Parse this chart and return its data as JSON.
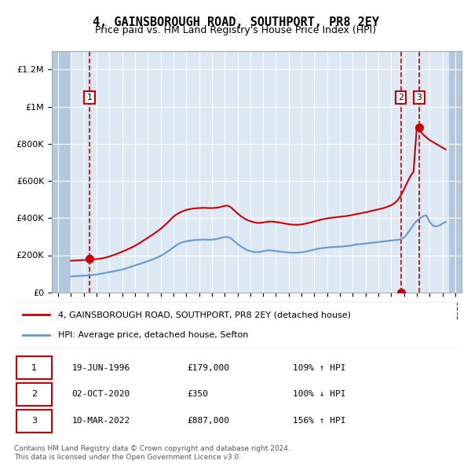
{
  "title": "4, GAINSBOROUGH ROAD, SOUTHPORT, PR8 2EY",
  "subtitle": "Price paid vs. HM Land Registry's House Price Index (HPI)",
  "ylabel": "",
  "background_color": "#dce9f5",
  "hatch_color": "#b0c8e0",
  "grid_color": "#ffffff",
  "xmin": 1993.5,
  "xmax": 2025.5,
  "ymin": 0,
  "ymax": 1300000,
  "yticks": [
    0,
    200000,
    400000,
    600000,
    800000,
    1000000,
    1200000
  ],
  "ytick_labels": [
    "£0",
    "£200K",
    "£400K",
    "£600K",
    "£800K",
    "£1M",
    "£1.2M"
  ],
  "xticks": [
    1994,
    1995,
    1996,
    1997,
    1998,
    1999,
    2000,
    2001,
    2002,
    2003,
    2004,
    2005,
    2006,
    2007,
    2008,
    2009,
    2010,
    2011,
    2012,
    2013,
    2014,
    2015,
    2016,
    2017,
    2018,
    2019,
    2020,
    2021,
    2022,
    2023,
    2024,
    2025
  ],
  "hpi_x": [
    1995,
    1995.25,
    1995.5,
    1995.75,
    1996,
    1996.25,
    1996.5,
    1996.75,
    1997,
    1997.25,
    1997.5,
    1997.75,
    1998,
    1998.25,
    1998.5,
    1998.75,
    1999,
    1999.25,
    1999.5,
    1999.75,
    2000,
    2000.25,
    2000.5,
    2000.75,
    2001,
    2001.25,
    2001.5,
    2001.75,
    2002,
    2002.25,
    2002.5,
    2002.75,
    2003,
    2003.25,
    2003.5,
    2003.75,
    2004,
    2004.25,
    2004.5,
    2004.75,
    2005,
    2005.25,
    2005.5,
    2005.75,
    2006,
    2006.25,
    2006.5,
    2006.75,
    2007,
    2007.25,
    2007.5,
    2007.75,
    2008,
    2008.25,
    2008.5,
    2008.75,
    2009,
    2009.25,
    2009.5,
    2009.75,
    2010,
    2010.25,
    2010.5,
    2010.75,
    2011,
    2011.25,
    2011.5,
    2011.75,
    2012,
    2012.25,
    2012.5,
    2012.75,
    2013,
    2013.25,
    2013.5,
    2013.75,
    2014,
    2014.25,
    2014.5,
    2014.75,
    2015,
    2015.25,
    2015.5,
    2015.75,
    2016,
    2016.25,
    2016.5,
    2016.75,
    2017,
    2017.25,
    2017.5,
    2017.75,
    2018,
    2018.25,
    2018.5,
    2018.75,
    2019,
    2019.25,
    2019.5,
    2019.75,
    2020,
    2020.25,
    2020.5,
    2020.75,
    2021,
    2021.25,
    2021.5,
    2021.75,
    2022,
    2022.25,
    2022.5,
    2022.75,
    2023,
    2023.25,
    2023.5,
    2023.75,
    2024,
    2024.25
  ],
  "hpi_y": [
    85000,
    87000,
    88000,
    89000,
    90000,
    91000,
    92000,
    94000,
    96000,
    99000,
    102000,
    106000,
    109000,
    112000,
    116000,
    119000,
    123000,
    128000,
    133000,
    139000,
    145000,
    150000,
    156000,
    162000,
    168000,
    174000,
    181000,
    188000,
    196000,
    206000,
    218000,
    230000,
    242000,
    255000,
    265000,
    271000,
    275000,
    278000,
    280000,
    282000,
    283000,
    284000,
    284000,
    283000,
    284000,
    286000,
    289000,
    294000,
    298000,
    298000,
    290000,
    275000,
    260000,
    248000,
    237000,
    228000,
    222000,
    218000,
    216000,
    218000,
    222000,
    225000,
    226000,
    225000,
    222000,
    220000,
    218000,
    216000,
    214000,
    213000,
    213000,
    214000,
    216000,
    218000,
    222000,
    226000,
    230000,
    234000,
    237000,
    239000,
    241000,
    243000,
    244000,
    245000,
    246000,
    247000,
    249000,
    251000,
    254000,
    257000,
    259000,
    261000,
    263000,
    265000,
    267000,
    269000,
    271000,
    273000,
    275000,
    277000,
    279000,
    281000,
    283000,
    286000,
    295000,
    315000,
    340000,
    365000,
    385000,
    400000,
    410000,
    415000,
    380000,
    360000,
    355000,
    360000,
    370000,
    380000
  ],
  "price_x": [
    1995.0,
    1995.25,
    1995.5,
    1995.75,
    1996.0,
    1996.25,
    1996.5,
    1996.75,
    1997.0,
    1997.25,
    1997.5,
    1997.75,
    1998.0,
    1998.25,
    1998.5,
    1998.75,
    1999.0,
    1999.25,
    1999.5,
    1999.75,
    2000.0,
    2000.25,
    2000.5,
    2000.75,
    2001.0,
    2001.25,
    2001.5,
    2001.75,
    2002.0,
    2002.25,
    2002.5,
    2002.75,
    2003.0,
    2003.25,
    2003.5,
    2003.75,
    2004.0,
    2004.25,
    2004.5,
    2004.75,
    2005.0,
    2005.25,
    2005.5,
    2005.75,
    2006.0,
    2006.25,
    2006.5,
    2006.75,
    2007.0,
    2007.25,
    2007.5,
    2007.75,
    2008.0,
    2008.25,
    2008.5,
    2008.75,
    2009.0,
    2009.25,
    2009.5,
    2009.75,
    2010.0,
    2010.25,
    2010.5,
    2010.75,
    2011.0,
    2011.25,
    2011.5,
    2011.75,
    2012.0,
    2012.25,
    2012.5,
    2012.75,
    2013.0,
    2013.25,
    2013.5,
    2013.75,
    2014.0,
    2014.25,
    2014.5,
    2014.75,
    2015.0,
    2015.25,
    2015.5,
    2015.75,
    2016.0,
    2016.25,
    2016.5,
    2016.75,
    2017.0,
    2017.25,
    2017.5,
    2017.75,
    2018.0,
    2018.25,
    2018.5,
    2018.75,
    2019.0,
    2019.25,
    2019.5,
    2019.75,
    2020.0,
    2020.25,
    2020.5,
    2020.75,
    2021.0,
    2021.25,
    2021.5,
    2021.75,
    2022.0,
    2022.25,
    2022.5,
    2022.75,
    2023.0,
    2023.25,
    2023.5,
    2023.75,
    2024.0,
    2024.25
  ],
  "price_y": [
    170000,
    171000,
    172000,
    173000,
    174000,
    175000,
    176000,
    177000,
    179000,
    181000,
    184000,
    188000,
    193000,
    199000,
    205000,
    212000,
    219000,
    226000,
    234000,
    242000,
    251000,
    261000,
    272000,
    283000,
    294000,
    305000,
    317000,
    329000,
    342000,
    357000,
    373000,
    390000,
    408000,
    420000,
    430000,
    438000,
    444000,
    448000,
    451000,
    453000,
    454000,
    455000,
    455000,
    454000,
    454000,
    455000,
    457000,
    461000,
    466000,
    467000,
    457000,
    441000,
    425000,
    411000,
    399000,
    390000,
    383000,
    378000,
    374000,
    374000,
    376000,
    379000,
    381000,
    381000,
    379000,
    376000,
    373000,
    370000,
    367000,
    365000,
    364000,
    364000,
    366000,
    369000,
    373000,
    377000,
    382000,
    387000,
    391000,
    395000,
    398000,
    401000,
    403000,
    405000,
    407000,
    409000,
    411000,
    414000,
    417000,
    421000,
    424000,
    428000,
    431000,
    435000,
    439000,
    443000,
    447000,
    451000,
    456000,
    462000,
    469000,
    479000,
    496000,
    521000,
    554000,
    591000,
    625000,
    651000,
    887000,
    870000,
    850000,
    835000,
    820000,
    810000,
    800000,
    790000,
    780000,
    770000
  ],
  "sale1_x": 1996.46,
  "sale1_y": 179000,
  "sale1_label": "1",
  "sale2_x": 2020.75,
  "sale2_y": 350,
  "sale2_label": "2",
  "sale3_x": 2022.19,
  "sale3_y": 887000,
  "sale3_label": "3",
  "vline1_x": 1996.46,
  "vline2_x": 2020.75,
  "vline3_x": 2022.19,
  "red_line_color": "#cc0000",
  "blue_line_color": "#6699cc",
  "dot_color": "#cc0000",
  "vline_color": "#cc0000",
  "legend_entries": [
    "4, GAINSBOROUGH ROAD, SOUTHPORT, PR8 2EY (detached house)",
    "HPI: Average price, detached house, Sefton"
  ],
  "table_data": [
    [
      "1",
      "19-JUN-1996",
      "£179,000",
      "109% ↑ HPI"
    ],
    [
      "2",
      "02-OCT-2020",
      "£350",
      "100% ↓ HPI"
    ],
    [
      "3",
      "10-MAR-2022",
      "£887,000",
      "156% ↑ HPI"
    ]
  ],
  "footnote": "Contains HM Land Registry data © Crown copyright and database right 2024.\nThis data is licensed under the Open Government Licence v3.0.",
  "hatch_xmin": 1993.5,
  "hatch_xmax": 1995.0,
  "hatch_xmin2": 2024.5,
  "hatch_xmax2": 2025.5
}
